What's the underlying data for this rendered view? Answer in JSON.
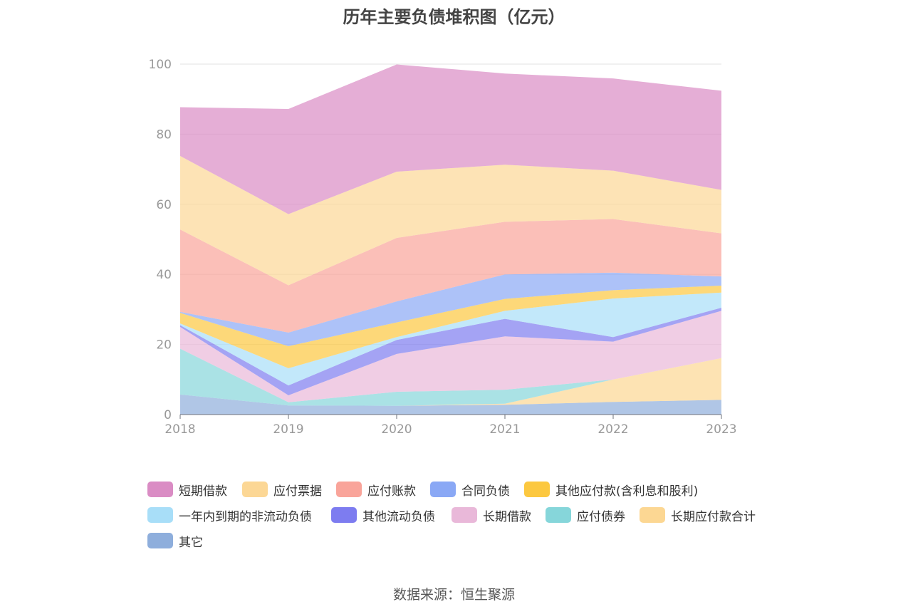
{
  "title": "历年主要负债堆积图（亿元）",
  "source": "数据来源：恒生聚源",
  "chart_data": {
    "type": "area",
    "stacked": true,
    "title": "历年主要负债堆积图（亿元）",
    "xlabel": "",
    "ylabel": "",
    "categories": [
      "2018",
      "2019",
      "2020",
      "2021",
      "2022",
      "2023"
    ],
    "ylim": [
      0,
      100
    ],
    "yticks": [
      0,
      20,
      40,
      60,
      80,
      100
    ],
    "grid": true,
    "legend_position": "bottom",
    "series": [
      {
        "name": "其它",
        "color": "#8eaedc",
        "values": [
          5.7,
          2.6,
          2.5,
          2.8,
          3.6,
          4.2
        ]
      },
      {
        "name": "长期应付款合计",
        "color": "#fcd793",
        "values": [
          0.0,
          0.0,
          0.0,
          0.3,
          6.4,
          11.9
        ]
      },
      {
        "name": "应付债券",
        "color": "#86d6da",
        "values": [
          13.1,
          0.9,
          4.0,
          4.0,
          0.0,
          0.0
        ]
      },
      {
        "name": "长期借款",
        "color": "#e9b8d9",
        "values": [
          6.2,
          2.0,
          10.8,
          15.2,
          10.8,
          13.5
        ]
      },
      {
        "name": "其他流动负债",
        "color": "#7d7cf0",
        "values": [
          0.5,
          2.8,
          4.0,
          5.0,
          1.3,
          0.9
        ]
      },
      {
        "name": "一年内到期的非流动负债",
        "color": "#a8def8",
        "values": [
          0.5,
          4.9,
          0.8,
          2.3,
          11.0,
          4.3
        ]
      },
      {
        "name": "其他应付款(含利息和股利)",
        "color": "#fcc840",
        "values": [
          3.0,
          6.3,
          4.2,
          3.4,
          2.4,
          2.0
        ]
      },
      {
        "name": "合同负债",
        "color": "#8aa8f5",
        "values": [
          0.3,
          3.9,
          6.0,
          7.0,
          5.0,
          2.6
        ]
      },
      {
        "name": "应付账款",
        "color": "#f9a49a",
        "values": [
          23.5,
          13.5,
          18.1,
          15.0,
          15.3,
          12.3
        ]
      },
      {
        "name": "应付票据",
        "color": "#fcd795",
        "values": [
          21.0,
          20.3,
          18.9,
          16.3,
          13.8,
          12.4
        ]
      },
      {
        "name": "短期借款",
        "color": "#da8cc4",
        "values": [
          13.9,
          30.0,
          30.6,
          26.0,
          26.3,
          28.3
        ]
      }
    ],
    "legend_order": [
      "短期借款",
      "应付票据",
      "应付账款",
      "合同负债",
      "其他应付款(含利息和股利)",
      "一年内到期的非流动负债",
      "其他流动负债",
      "长期借款",
      "应付债券",
      "长期应付款合计",
      "其它"
    ]
  }
}
